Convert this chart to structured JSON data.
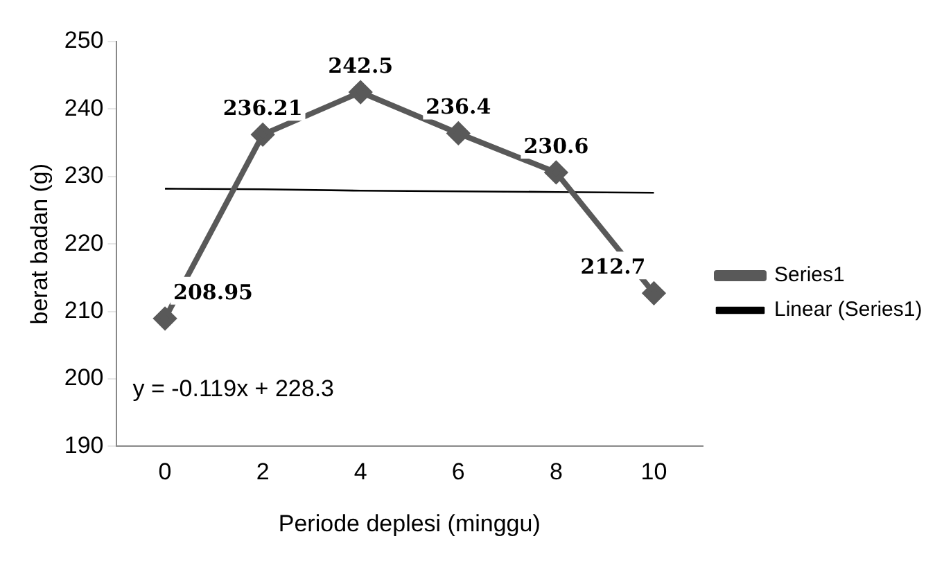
{
  "chart_data": {
    "type": "line",
    "xlabel": "Periode deplesi (minggu)",
    "ylabel": "berat badan (g)",
    "categories": [
      "0",
      "2",
      "4",
      "6",
      "8",
      "10"
    ],
    "series": [
      {
        "name": "Series1",
        "color": "#595959",
        "values": [
          208.95,
          236.21,
          242.5,
          236.4,
          230.6,
          212.7
        ],
        "value_labels": [
          "208.95",
          "236.21",
          "242.5",
          "236.4",
          "230.6",
          "212.7"
        ],
        "marker": "diamond"
      },
      {
        "name": "Linear (Series1)",
        "color": "#000000",
        "values": [
          228.2,
          228.1,
          227.9,
          227.8,
          227.7,
          227.6
        ],
        "marker": "none"
      }
    ],
    "ylim": [
      190,
      250
    ],
    "yticks": [
      190,
      200,
      210,
      220,
      230,
      240,
      250
    ],
    "grid": false,
    "legend": "right",
    "annotations": [
      "y = -0.119x + 228.3"
    ]
  }
}
